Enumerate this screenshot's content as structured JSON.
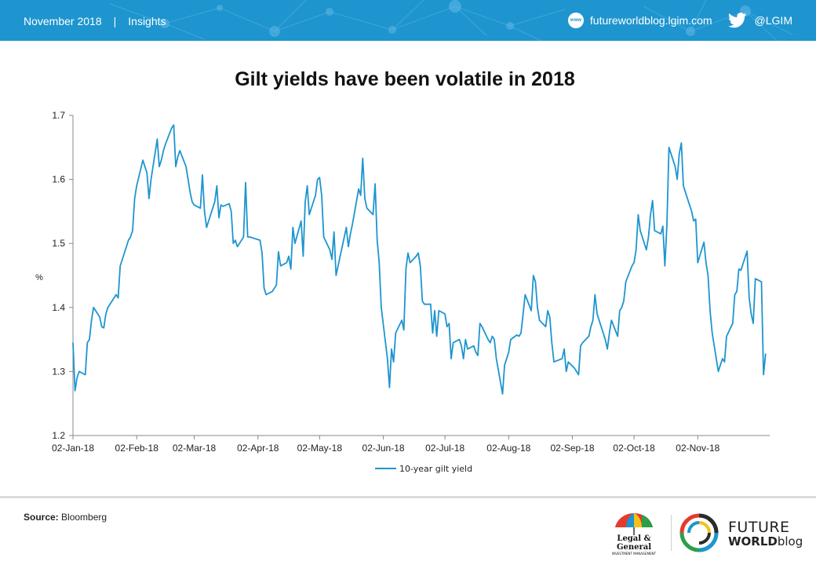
{
  "header": {
    "date": "November 2018",
    "separator": "|",
    "section": "Insights",
    "website": "futureworldblog.lgim.com",
    "www_badge": "www",
    "twitter_handle": "@LGIM",
    "icons": [
      "www-icon",
      "twitter-bird-icon"
    ],
    "bar_color": "#1e95cf"
  },
  "chart_data": {
    "type": "line",
    "title": "Gilt yields have been volatile in 2018",
    "xlabel": "",
    "ylabel": "%",
    "ylim": [
      1.2,
      1.7
    ],
    "yticks": [
      "1.2",
      "1.3",
      "1.4",
      "1.5",
      "1.6",
      "1.7"
    ],
    "xticks": [
      "02-Jan-18",
      "02-Feb-18",
      "02-Mar-18",
      "02-Apr-18",
      "02-May-18",
      "02-Jun-18",
      "02-Jul-18",
      "02-Aug-18",
      "02-Sep-18",
      "02-Oct-18",
      "02-Nov-18"
    ],
    "grid": false,
    "legend_position": "bottom-center",
    "series": [
      {
        "name": "10-year gilt yield",
        "color": "#1e95cf",
        "points": [
          [
            "2018-01-02",
            1.345
          ],
          [
            "2018-01-03",
            1.27
          ],
          [
            "2018-01-04",
            1.29
          ],
          [
            "2018-01-05",
            1.3
          ],
          [
            "2018-01-08",
            1.295
          ],
          [
            "2018-01-09",
            1.345
          ],
          [
            "2018-01-10",
            1.35
          ],
          [
            "2018-01-11",
            1.38
          ],
          [
            "2018-01-12",
            1.4
          ],
          [
            "2018-01-15",
            1.385
          ],
          [
            "2018-01-16",
            1.37
          ],
          [
            "2018-01-17",
            1.368
          ],
          [
            "2018-01-18",
            1.39
          ],
          [
            "2018-01-19",
            1.4
          ],
          [
            "2018-01-22",
            1.415
          ],
          [
            "2018-01-23",
            1.42
          ],
          [
            "2018-01-24",
            1.415
          ],
          [
            "2018-01-25",
            1.465
          ],
          [
            "2018-01-26",
            1.475
          ],
          [
            "2018-01-29",
            1.505
          ],
          [
            "2018-01-30",
            1.51
          ],
          [
            "2018-01-31",
            1.52
          ],
          [
            "2018-02-01",
            1.57
          ],
          [
            "2018-02-02",
            1.59
          ],
          [
            "2018-02-05",
            1.63
          ],
          [
            "2018-02-06",
            1.62
          ],
          [
            "2018-02-07",
            1.61
          ],
          [
            "2018-02-08",
            1.57
          ],
          [
            "2018-02-09",
            1.6
          ],
          [
            "2018-02-12",
            1.663
          ],
          [
            "2018-02-13",
            1.62
          ],
          [
            "2018-02-14",
            1.63
          ],
          [
            "2018-02-15",
            1.645
          ],
          [
            "2018-02-16",
            1.655
          ],
          [
            "2018-02-19",
            1.68
          ],
          [
            "2018-02-20",
            1.685
          ],
          [
            "2018-02-21",
            1.62
          ],
          [
            "2018-02-22",
            1.635
          ],
          [
            "2018-02-23",
            1.645
          ],
          [
            "2018-02-26",
            1.62
          ],
          [
            "2018-02-27",
            1.6
          ],
          [
            "2018-02-28",
            1.58
          ],
          [
            "2018-03-01",
            1.565
          ],
          [
            "2018-03-02",
            1.56
          ],
          [
            "2018-03-05",
            1.555
          ],
          [
            "2018-03-06",
            1.607
          ],
          [
            "2018-03-07",
            1.55
          ],
          [
            "2018-03-08",
            1.525
          ],
          [
            "2018-03-09",
            1.535
          ],
          [
            "2018-03-12",
            1.565
          ],
          [
            "2018-03-13",
            1.59
          ],
          [
            "2018-03-14",
            1.54
          ],
          [
            "2018-03-15",
            1.56
          ],
          [
            "2018-03-16",
            1.558
          ],
          [
            "2018-03-19",
            1.562
          ],
          [
            "2018-03-20",
            1.55
          ],
          [
            "2018-03-21",
            1.5
          ],
          [
            "2018-03-22",
            1.505
          ],
          [
            "2018-03-23",
            1.495
          ],
          [
            "2018-03-26",
            1.51
          ],
          [
            "2018-03-27",
            1.595
          ],
          [
            "2018-03-28",
            1.51
          ],
          [
            "2018-03-29",
            1.51
          ],
          [
            "2018-04-03",
            1.505
          ],
          [
            "2018-04-04",
            1.485
          ],
          [
            "2018-04-05",
            1.43
          ],
          [
            "2018-04-06",
            1.42
          ],
          [
            "2018-04-09",
            1.425
          ],
          [
            "2018-04-10",
            1.43
          ],
          [
            "2018-04-11",
            1.435
          ],
          [
            "2018-04-12",
            1.487
          ],
          [
            "2018-04-13",
            1.465
          ],
          [
            "2018-04-16",
            1.47
          ],
          [
            "2018-04-17",
            1.48
          ],
          [
            "2018-04-18",
            1.46
          ],
          [
            "2018-04-19",
            1.525
          ],
          [
            "2018-04-20",
            1.5
          ],
          [
            "2018-04-23",
            1.535
          ],
          [
            "2018-04-24",
            1.48
          ],
          [
            "2018-04-25",
            1.565
          ],
          [
            "2018-04-26",
            1.59
          ],
          [
            "2018-04-27",
            1.545
          ],
          [
            "2018-04-30",
            1.575
          ],
          [
            "2018-05-01",
            1.6
          ],
          [
            "2018-05-02",
            1.603
          ],
          [
            "2018-05-03",
            1.575
          ],
          [
            "2018-05-04",
            1.51
          ],
          [
            "2018-05-07",
            1.49
          ],
          [
            "2018-05-08",
            1.475
          ],
          [
            "2018-05-09",
            1.518
          ],
          [
            "2018-05-10",
            1.45
          ],
          [
            "2018-05-11",
            1.465
          ],
          [
            "2018-05-14",
            1.51
          ],
          [
            "2018-05-15",
            1.525
          ],
          [
            "2018-05-16",
            1.495
          ],
          [
            "2018-05-17",
            1.515
          ],
          [
            "2018-05-18",
            1.53
          ],
          [
            "2018-05-21",
            1.585
          ],
          [
            "2018-05-22",
            1.575
          ],
          [
            "2018-05-23",
            1.633
          ],
          [
            "2018-05-24",
            1.57
          ],
          [
            "2018-05-25",
            1.555
          ],
          [
            "2018-05-28",
            1.545
          ],
          [
            "2018-05-29",
            1.593
          ],
          [
            "2018-05-30",
            1.505
          ],
          [
            "2018-05-31",
            1.47
          ],
          [
            "2018-06-01",
            1.4
          ],
          [
            "2018-06-04",
            1.32
          ],
          [
            "2018-06-05",
            1.275
          ],
          [
            "2018-06-06",
            1.335
          ],
          [
            "2018-06-07",
            1.315
          ],
          [
            "2018-06-08",
            1.36
          ],
          [
            "2018-06-11",
            1.38
          ],
          [
            "2018-06-12",
            1.365
          ],
          [
            "2018-06-13",
            1.46
          ],
          [
            "2018-06-14",
            1.485
          ],
          [
            "2018-06-15",
            1.47
          ],
          [
            "2018-06-18",
            1.48
          ],
          [
            "2018-06-19",
            1.485
          ],
          [
            "2018-06-20",
            1.465
          ],
          [
            "2018-06-21",
            1.41
          ],
          [
            "2018-06-22",
            1.405
          ],
          [
            "2018-06-25",
            1.405
          ],
          [
            "2018-06-26",
            1.36
          ],
          [
            "2018-06-27",
            1.395
          ],
          [
            "2018-06-28",
            1.355
          ],
          [
            "2018-06-29",
            1.395
          ],
          [
            "2018-07-02",
            1.39
          ],
          [
            "2018-07-03",
            1.37
          ],
          [
            "2018-07-04",
            1.375
          ],
          [
            "2018-07-05",
            1.32
          ],
          [
            "2018-07-06",
            1.345
          ],
          [
            "2018-07-09",
            1.35
          ],
          [
            "2018-07-10",
            1.34
          ],
          [
            "2018-07-11",
            1.32
          ],
          [
            "2018-07-12",
            1.35
          ],
          [
            "2018-07-13",
            1.335
          ],
          [
            "2018-07-16",
            1.34
          ],
          [
            "2018-07-17",
            1.33
          ],
          [
            "2018-07-18",
            1.325
          ],
          [
            "2018-07-19",
            1.375
          ],
          [
            "2018-07-20",
            1.37
          ],
          [
            "2018-07-23",
            1.35
          ],
          [
            "2018-07-24",
            1.345
          ],
          [
            "2018-07-25",
            1.355
          ],
          [
            "2018-07-26",
            1.35
          ],
          [
            "2018-07-27",
            1.32
          ],
          [
            "2018-07-30",
            1.265
          ],
          [
            "2018-07-31",
            1.31
          ],
          [
            "2018-08-01",
            1.32
          ],
          [
            "2018-08-02",
            1.33
          ],
          [
            "2018-08-03",
            1.35
          ],
          [
            "2018-08-06",
            1.357
          ],
          [
            "2018-08-07",
            1.355
          ],
          [
            "2018-08-08",
            1.36
          ],
          [
            "2018-08-09",
            1.39
          ],
          [
            "2018-08-10",
            1.42
          ],
          [
            "2018-08-13",
            1.395
          ],
          [
            "2018-08-14",
            1.45
          ],
          [
            "2018-08-15",
            1.44
          ],
          [
            "2018-08-16",
            1.4
          ],
          [
            "2018-08-17",
            1.38
          ],
          [
            "2018-08-20",
            1.37
          ],
          [
            "2018-08-21",
            1.395
          ],
          [
            "2018-08-22",
            1.385
          ],
          [
            "2018-08-23",
            1.345
          ],
          [
            "2018-08-24",
            1.315
          ],
          [
            "2018-08-28",
            1.32
          ],
          [
            "2018-08-29",
            1.335
          ],
          [
            "2018-08-30",
            1.3
          ],
          [
            "2018-08-31",
            1.315
          ],
          [
            "2018-09-03",
            1.305
          ],
          [
            "2018-09-04",
            1.3
          ],
          [
            "2018-09-05",
            1.295
          ],
          [
            "2018-09-06",
            1.34
          ],
          [
            "2018-09-07",
            1.345
          ],
          [
            "2018-09-10",
            1.355
          ],
          [
            "2018-09-11",
            1.37
          ],
          [
            "2018-09-12",
            1.38
          ],
          [
            "2018-09-13",
            1.42
          ],
          [
            "2018-09-14",
            1.39
          ],
          [
            "2018-09-17",
            1.36
          ],
          [
            "2018-09-18",
            1.35
          ],
          [
            "2018-09-19",
            1.335
          ],
          [
            "2018-09-20",
            1.36
          ],
          [
            "2018-09-21",
            1.38
          ],
          [
            "2018-09-24",
            1.355
          ],
          [
            "2018-09-25",
            1.395
          ],
          [
            "2018-09-26",
            1.4
          ],
          [
            "2018-09-27",
            1.41
          ],
          [
            "2018-09-28",
            1.44
          ],
          [
            "2018-10-01",
            1.465
          ],
          [
            "2018-10-02",
            1.47
          ],
          [
            "2018-10-03",
            1.49
          ],
          [
            "2018-10-04",
            1.545
          ],
          [
            "2018-10-05",
            1.52
          ],
          [
            "2018-10-08",
            1.49
          ],
          [
            "2018-10-09",
            1.51
          ],
          [
            "2018-10-10",
            1.545
          ],
          [
            "2018-10-11",
            1.567
          ],
          [
            "2018-10-12",
            1.52
          ],
          [
            "2018-10-15",
            1.515
          ],
          [
            "2018-10-16",
            1.527
          ],
          [
            "2018-10-17",
            1.465
          ],
          [
            "2018-10-18",
            1.53
          ],
          [
            "2018-10-19",
            1.65
          ],
          [
            "2018-10-22",
            1.62
          ],
          [
            "2018-10-23",
            1.6
          ],
          [
            "2018-10-24",
            1.64
          ],
          [
            "2018-10-25",
            1.657
          ],
          [
            "2018-10-26",
            1.59
          ],
          [
            "2018-10-29",
            1.56
          ],
          [
            "2018-10-30",
            1.55
          ],
          [
            "2018-10-31",
            1.535
          ],
          [
            "2018-11-01",
            1.538
          ],
          [
            "2018-11-02",
            1.47
          ],
          [
            "2018-11-05",
            1.502
          ],
          [
            "2018-11-06",
            1.47
          ],
          [
            "2018-11-07",
            1.45
          ],
          [
            "2018-11-08",
            1.395
          ],
          [
            "2018-11-09",
            1.36
          ],
          [
            "2018-11-12",
            1.3
          ],
          [
            "2018-11-13",
            1.31
          ],
          [
            "2018-11-14",
            1.32
          ],
          [
            "2018-11-15",
            1.315
          ],
          [
            "2018-11-16",
            1.355
          ],
          [
            "2018-11-19",
            1.375
          ],
          [
            "2018-11-20",
            1.42
          ],
          [
            "2018-11-21",
            1.425
          ],
          [
            "2018-11-22",
            1.46
          ],
          [
            "2018-11-23",
            1.458
          ],
          [
            "2018-11-26",
            1.488
          ],
          [
            "2018-11-27",
            1.415
          ],
          [
            "2018-11-28",
            1.39
          ],
          [
            "2018-11-29",
            1.375
          ],
          [
            "2018-11-30",
            1.445
          ],
          [
            "2018-12-03",
            1.44
          ],
          [
            "2018-12-04",
            1.295
          ],
          [
            "2018-12-05",
            1.328
          ]
        ]
      }
    ]
  },
  "footer": {
    "source_label": "Source:",
    "source_value": "Bloomberg",
    "lg_logo": {
      "line1": "Legal &",
      "line2": "General",
      "line3": "INVESTMENT MANAGEMENT"
    },
    "fw_logo": {
      "line1": "FUTURE",
      "line2_bold": "WORLD",
      "line2_light": "blog"
    },
    "icons": [
      "legal-general-umbrella-logo",
      "future-world-circle-logo"
    ]
  }
}
